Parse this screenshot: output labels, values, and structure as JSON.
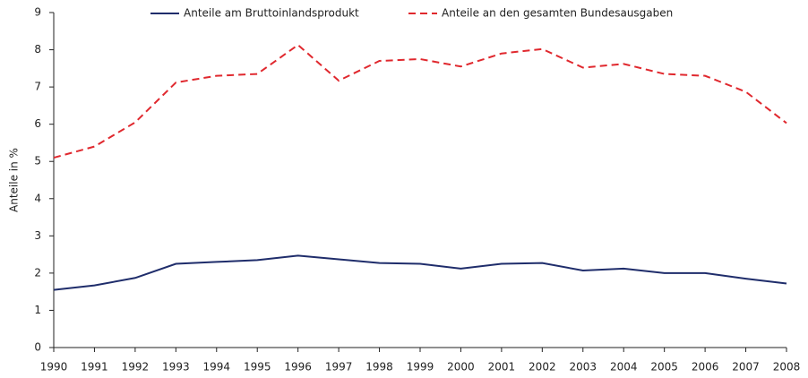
{
  "chart_data": {
    "type": "line",
    "y_label": "Anteile in %",
    "x": [
      1990,
      1991,
      1992,
      1993,
      1994,
      1995,
      1996,
      1997,
      1998,
      1999,
      2000,
      2001,
      2002,
      2003,
      2004,
      2005,
      2006,
      2007,
      2008
    ],
    "xlim": [
      1990,
      2008
    ],
    "xticks": [
      1990,
      1991,
      1992,
      1993,
      1994,
      1995,
      1996,
      1997,
      1998,
      1999,
      2000,
      2001,
      2002,
      2003,
      2004,
      2005,
      2006,
      2007,
      2008
    ],
    "ylim": [
      0,
      9
    ],
    "yticks": [
      0,
      1,
      2,
      3,
      4,
      5,
      6,
      7,
      8,
      9
    ],
    "grid": false,
    "legend": "top",
    "series": [
      {
        "name": "Anteile am Bruttoinlandsprodukt",
        "color": "#1f2d6b",
        "dash": false,
        "values": [
          1.55,
          1.67,
          1.87,
          2.25,
          2.3,
          2.35,
          2.47,
          2.37,
          2.27,
          2.25,
          2.12,
          2.25,
          2.27,
          2.07,
          2.12,
          2.0,
          2.0,
          1.85,
          1.72
        ]
      },
      {
        "name": "Anteile an den gesamten Bundesausgaben",
        "color": "#e0282e",
        "dash": true,
        "values": [
          5.1,
          5.4,
          6.05,
          7.12,
          7.3,
          7.35,
          8.13,
          7.17,
          7.7,
          7.75,
          7.55,
          7.9,
          8.02,
          7.52,
          7.62,
          7.35,
          7.3,
          6.87,
          6.03
        ]
      }
    ]
  }
}
